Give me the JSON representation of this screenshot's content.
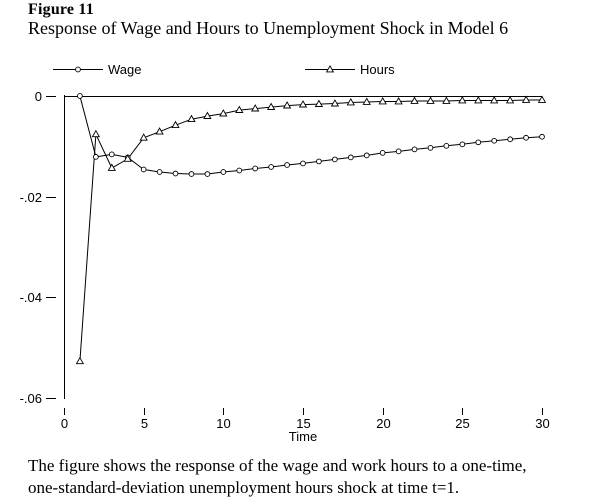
{
  "figure": {
    "label": "Figure 11",
    "title": "Response of Wage and Hours to Unemployment Shock in Model 6"
  },
  "caption": {
    "line1": "The figure shows the response of the wage and work hours to a one-time,",
    "line2": "one-standard-deviation unemployment hours shock at time t=1."
  },
  "chart_data": {
    "type": "line",
    "title": "",
    "xlabel": "Time",
    "ylabel": "",
    "xlim": [
      0,
      30
    ],
    "ylim": [
      -0.06,
      0
    ],
    "grid": false,
    "legend_position": "top",
    "x_ticks": [
      0,
      5,
      10,
      15,
      20,
      25,
      30
    ],
    "x_tick_labels": [
      "0",
      "5",
      "10",
      "15",
      "20",
      "25",
      "30"
    ],
    "y_ticks": [
      0,
      -0.02,
      -0.04,
      -0.06
    ],
    "y_tick_labels": [
      "0",
      "-.02",
      "-.04",
      "-.06"
    ],
    "x": [
      1,
      2,
      3,
      4,
      5,
      6,
      7,
      8,
      9,
      10,
      11,
      12,
      13,
      14,
      15,
      16,
      17,
      18,
      19,
      20,
      21,
      22,
      23,
      24,
      25,
      26,
      27,
      28,
      29,
      30
    ],
    "series": [
      {
        "name": "Wage",
        "marker": "circle",
        "color": "#000000",
        "values": [
          0.0,
          -0.0121,
          -0.0116,
          -0.0122,
          -0.0146,
          -0.0151,
          -0.0154,
          -0.0155,
          -0.0155,
          -0.0151,
          -0.0148,
          -0.0144,
          -0.0141,
          -0.0137,
          -0.0134,
          -0.013,
          -0.0126,
          -0.0122,
          -0.0118,
          -0.0113,
          -0.011,
          -0.0106,
          -0.0103,
          -0.0099,
          -0.0096,
          -0.0092,
          -0.0089,
          -0.0086,
          -0.0083,
          -0.0081
        ]
      },
      {
        "name": "Hours",
        "marker": "triangle",
        "color": "#000000",
        "values": [
          -0.0527,
          -0.0076,
          -0.0143,
          -0.0125,
          -0.0083,
          -0.0071,
          -0.0058,
          -0.0046,
          -0.004,
          -0.0035,
          -0.0028,
          -0.0025,
          -0.0022,
          -0.0019,
          -0.0017,
          -0.0016,
          -0.0015,
          -0.0013,
          -0.0012,
          -0.0011,
          -0.0011,
          -0.001,
          -0.001,
          -0.001,
          -0.0009,
          -0.0009,
          -0.0009,
          -0.0009,
          -0.0008,
          -0.0008
        ]
      }
    ],
    "colors": {
      "series": "#000000",
      "background": "#ffffff"
    }
  }
}
